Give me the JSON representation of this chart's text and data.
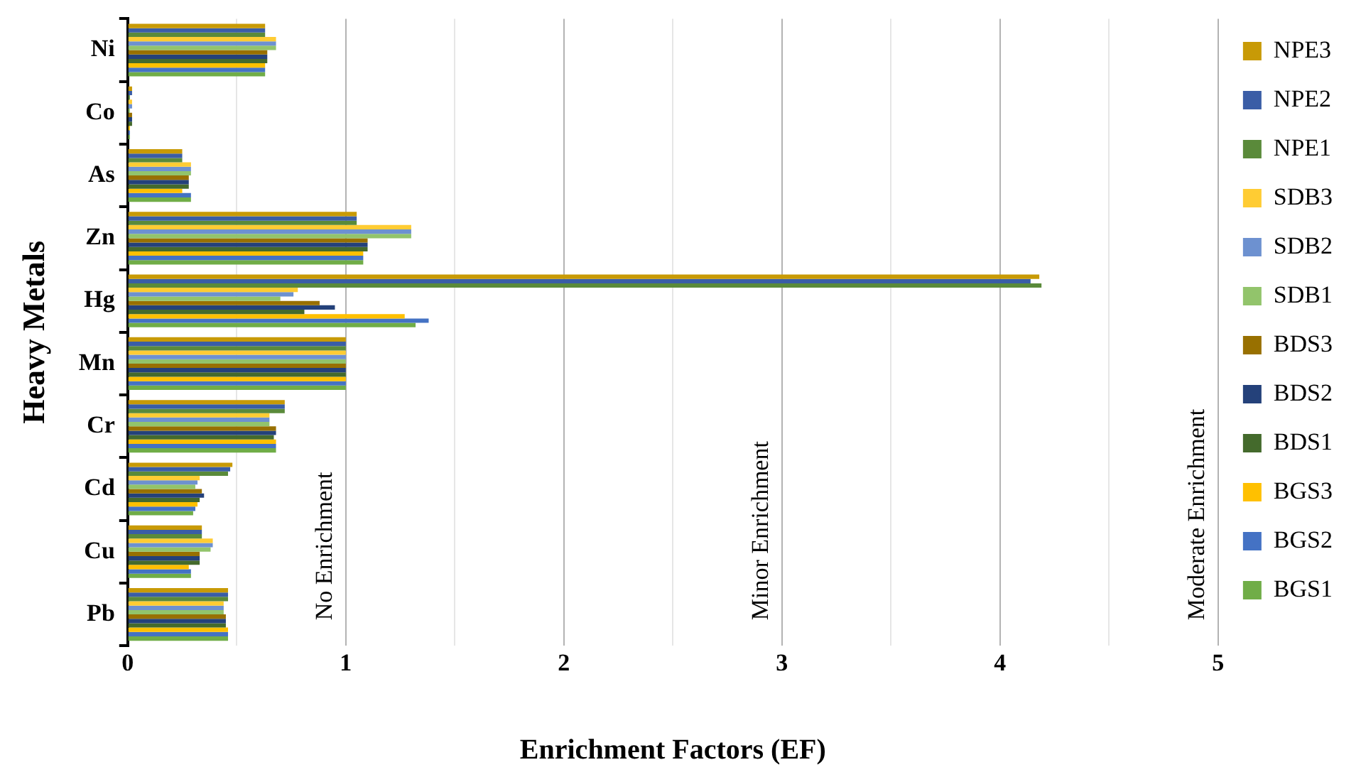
{
  "chart_data": {
    "type": "bar",
    "orientation": "horizontal",
    "xlabel": "Enrichment Factors (EF)",
    "ylabel": "Heavy Metals",
    "categories": [
      "Ni",
      "Co",
      "As",
      "Zn",
      "Hg",
      "Mn",
      "Cr",
      "Cd",
      "Cu",
      "Pb"
    ],
    "series": [
      {
        "name": "NPE3",
        "color": "#c89a06",
        "values": [
          0.63,
          0.02,
          0.25,
          1.05,
          4.18,
          1.0,
          0.72,
          0.48,
          0.34,
          0.46
        ]
      },
      {
        "name": "NPE2",
        "color": "#3a5da6",
        "values": [
          0.63,
          0.02,
          0.25,
          1.05,
          4.14,
          1.0,
          0.72,
          0.47,
          0.34,
          0.46
        ]
      },
      {
        "name": "NPE1",
        "color": "#5a8a3a",
        "values": [
          0.63,
          0.01,
          0.25,
          1.05,
          4.19,
          1.0,
          0.72,
          0.46,
          0.34,
          0.46
        ]
      },
      {
        "name": "SDB3",
        "color": "#ffcc33",
        "values": [
          0.68,
          0.02,
          0.29,
          1.3,
          0.78,
          1.0,
          0.65,
          0.33,
          0.39,
          0.44
        ]
      },
      {
        "name": "SDB2",
        "color": "#6d91d0",
        "values": [
          0.68,
          0.02,
          0.29,
          1.3,
          0.76,
          1.0,
          0.65,
          0.32,
          0.39,
          0.44
        ]
      },
      {
        "name": "SDB1",
        "color": "#92c46b",
        "values": [
          0.68,
          0.01,
          0.29,
          1.3,
          0.7,
          1.0,
          0.65,
          0.31,
          0.38,
          0.44
        ]
      },
      {
        "name": "BDS3",
        "color": "#987000",
        "values": [
          0.64,
          0.02,
          0.28,
          1.1,
          0.88,
          1.0,
          0.68,
          0.34,
          0.33,
          0.45
        ]
      },
      {
        "name": "BDS2",
        "color": "#24417a",
        "values": [
          0.64,
          0.02,
          0.28,
          1.1,
          0.95,
          1.0,
          0.68,
          0.35,
          0.33,
          0.45
        ]
      },
      {
        "name": "BDS1",
        "color": "#446a2c",
        "values": [
          0.64,
          0.02,
          0.28,
          1.1,
          0.81,
          1.0,
          0.67,
          0.33,
          0.33,
          0.45
        ]
      },
      {
        "name": "BGS3",
        "color": "#ffc000",
        "values": [
          0.63,
          0.01,
          0.25,
          1.08,
          1.27,
          1.0,
          0.68,
          0.32,
          0.28,
          0.46
        ]
      },
      {
        "name": "BGS2",
        "color": "#4472c4",
        "values": [
          0.63,
          0.01,
          0.29,
          1.08,
          1.38,
          1.0,
          0.68,
          0.31,
          0.29,
          0.46
        ]
      },
      {
        "name": "BGS1",
        "color": "#70ad47",
        "values": [
          0.63,
          0.01,
          0.29,
          1.08,
          1.32,
          1.0,
          0.68,
          0.3,
          0.29,
          0.46
        ]
      }
    ],
    "xlim": [
      0,
      5
    ],
    "xticks": [
      0,
      {
        "value": 0.5,
        "label": null
      },
      1,
      {
        "value": 1.5,
        "label": null
      },
      2,
      {
        "value": 2.5,
        "label": null
      },
      3,
      {
        "value": 3.5,
        "label": null
      },
      4,
      {
        "value": 4.5,
        "label": null
      },
      5
    ],
    "grid": "x",
    "legend": "right",
    "annotations": [
      "No Enrichment",
      "Minor Enrichment",
      "Moderate Enrichment"
    ]
  }
}
